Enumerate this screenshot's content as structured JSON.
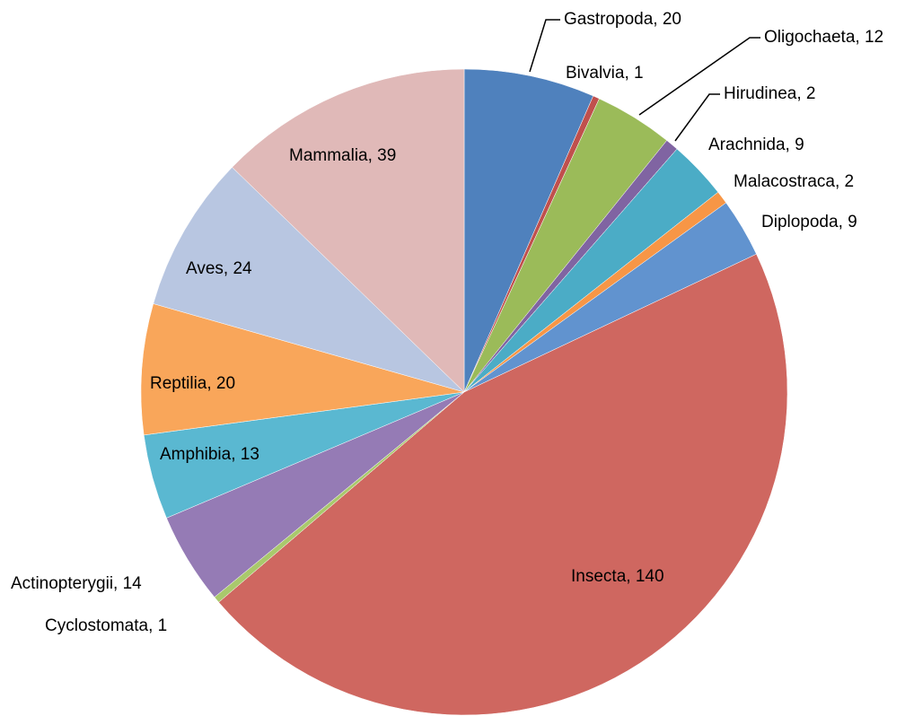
{
  "chart_data": {
    "type": "pie",
    "labels": [
      "Gastropoda, 20",
      "Bivalvia, 1",
      "Oligochaeta, 12",
      "Hirudinea, 2",
      "Arachnida, 9",
      "Malacostraca, 2",
      "Diplopoda, 9",
      "Insecta, 140",
      "Cyclostomata, 1",
      "Actinopterygii, 14",
      "Amphibia, 13",
      "Reptilia, 20",
      "Aves, 24",
      "Mammalia, 39"
    ],
    "values": [
      20,
      1,
      12,
      2,
      9,
      2,
      9,
      140,
      1,
      14,
      13,
      20,
      24,
      39
    ],
    "colors": [
      "#4f81bd",
      "#c0504d",
      "#9bbb59",
      "#8064a2",
      "#4bacc6",
      "#f79646",
      "#6193cf",
      "#cf6760",
      "#a9c96c",
      "#957bb5",
      "#5ab8d1",
      "#f9a65a",
      "#b8c6e1",
      "#e0b9b8"
    ]
  }
}
